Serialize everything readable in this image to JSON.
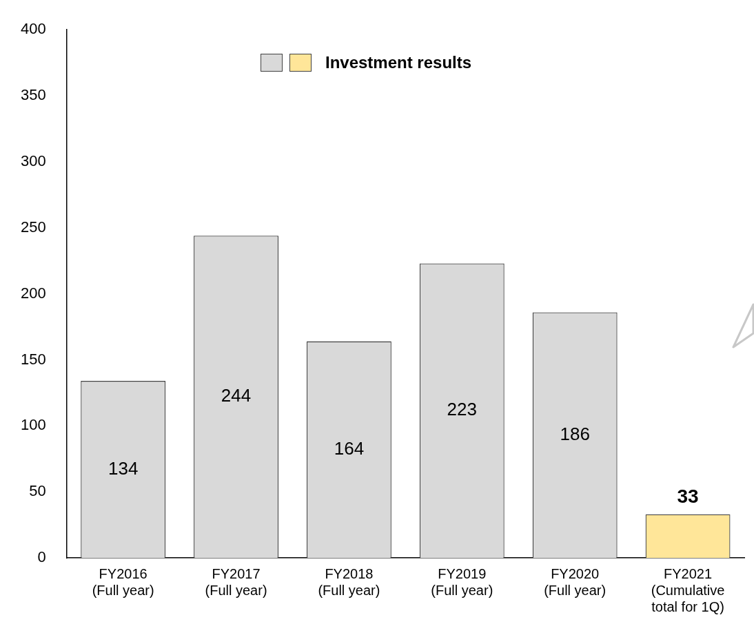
{
  "chart_data": {
    "type": "bar",
    "categories": [
      "FY2016\n(Full year)",
      "FY2017\n(Full year)",
      "FY2018\n(Full year)",
      "FY2019\n(Full year)",
      "FY2020\n(Full year)",
      "FY2021\n(Cumulative\ntotal for 1Q)"
    ],
    "series": [
      {
        "name": "Investment results",
        "colors": [
          "#d9d9d9",
          "#d9d9d9",
          "#d9d9d9",
          "#d9d9d9",
          "#d9d9d9",
          "#ffe699"
        ],
        "values": [
          134,
          244,
          164,
          223,
          186,
          33
        ]
      }
    ],
    "ylim": [
      0,
      400
    ],
    "yticks": [
      0,
      50,
      100,
      150,
      200,
      250,
      300,
      350,
      400
    ],
    "data_labels": true,
    "legend": "top",
    "grid": false
  }
}
